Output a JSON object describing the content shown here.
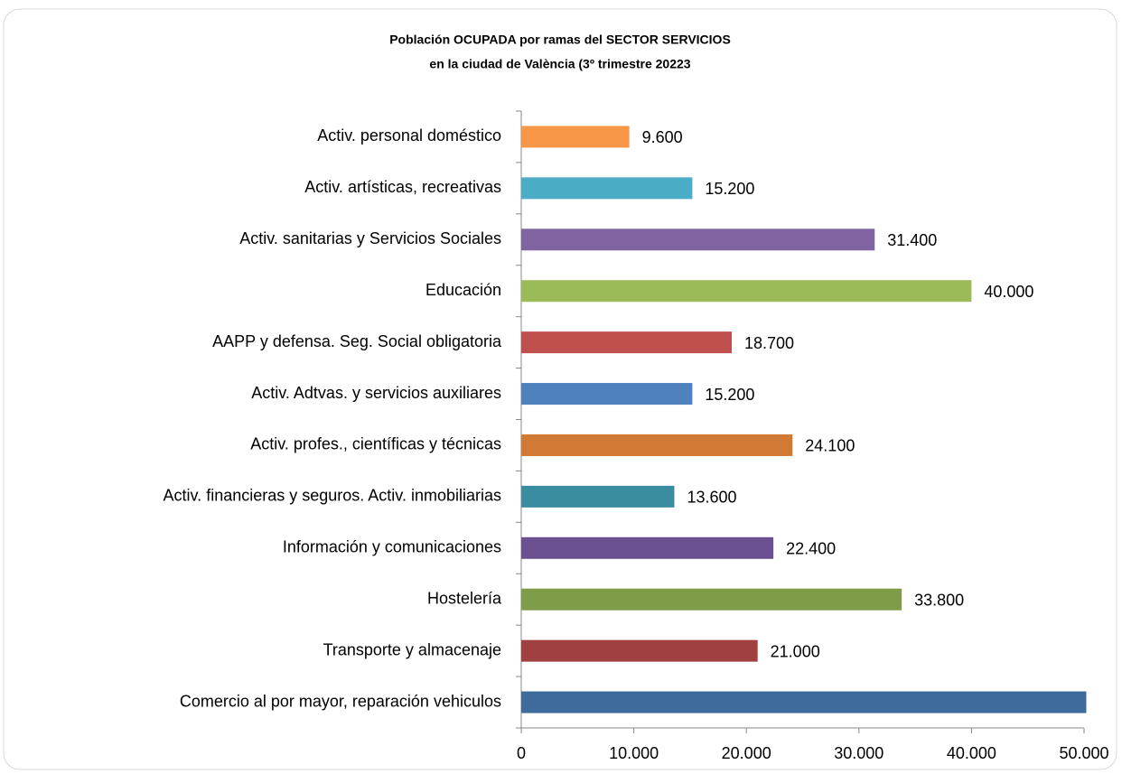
{
  "chart_data": {
    "type": "hbar",
    "title": [
      "Población OCUPADA por ramas del SECTOR SERVICIOS",
      "en la ciudad de València (3º trimestre 20223"
    ],
    "categories": [
      "Activ. personal doméstico",
      "Activ. artísticas, recreativas",
      "Activ. sanitarias y Servicios Sociales",
      "Educación",
      "AAPP y defensa. Seg. Social obligatoria",
      "Activ. Adtvas. y servicios auxiliares",
      "Activ. profes., científicas y técnicas",
      "Activ. financieras y seguros.  Activ. inmobiliarias",
      "Información y comunicaciones",
      "Hostelería",
      "Transporte y almacenaje",
      "Comercio al por mayor, reparación vehiculos"
    ],
    "values": [
      9600,
      15200,
      31400,
      40000,
      18700,
      15200,
      24100,
      13600,
      22400,
      33800,
      21000,
      50200
    ],
    "value_labels": [
      "9.600",
      "15.200",
      "31.400",
      "40.000",
      "18.700",
      "15.200",
      "24.100",
      "13.600",
      "22.400",
      "33.800",
      "21.000",
      null
    ],
    "colors": [
      "#f79646",
      "#4bacc6",
      "#8064a2",
      "#9bbb59",
      "#c0504d",
      "#4f81bd",
      "#d07a36",
      "#3a8ca0",
      "#6a5090",
      "#7f9c48",
      "#a04040",
      "#3f6a9c"
    ],
    "xlim": [
      0,
      50000
    ],
    "xticks": [
      0,
      {
        "value": 10000,
        "label": "10.000"
      },
      {
        "value": 20000,
        "label": "20.000"
      },
      {
        "value": 30000,
        "label": "30.000"
      },
      {
        "value": 40000,
        "label": "40.000"
      },
      {
        "value": 50000,
        "label": "50.000"
      }
    ],
    "grid": false
  }
}
